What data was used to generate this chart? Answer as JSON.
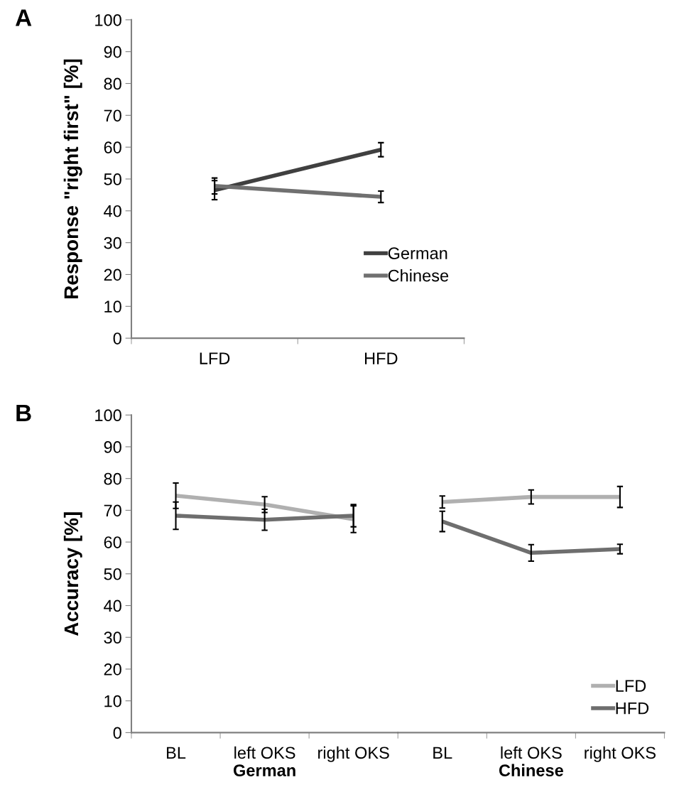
{
  "chart_data": [
    {
      "type": "line",
      "title": "A",
      "ylabel": "Response \"right first\" [%]",
      "categories": [
        "LFD",
        "HFD"
      ],
      "ylim": [
        0,
        100
      ],
      "yticks": [
        0,
        10,
        20,
        30,
        40,
        50,
        60,
        70,
        80,
        90,
        100
      ],
      "grid": false,
      "legend": "bottom right",
      "marker": "none",
      "line_style": "solid",
      "series": [
        {
          "name": "German",
          "color": "#404040",
          "values": [
            46.5,
            59.2
          ],
          "errors": [
            3,
            2.2
          ]
        },
        {
          "name": "Chinese",
          "color": "#707070",
          "values": [
            47.8,
            44.4
          ],
          "errors": [
            2.5,
            1.8
          ]
        }
      ]
    },
    {
      "type": "line",
      "title": "B",
      "ylabel": "Accuracy [%]",
      "xlabel": "German",
      "categories": [
        "BL",
        "left OKS",
        "right OKS"
      ],
      "ylim": [
        0,
        100
      ],
      "yticks": [
        0,
        10,
        20,
        30,
        40,
        50,
        60,
        70,
        80,
        90,
        100
      ],
      "grid": false,
      "legend": "bottom right",
      "marker": "none",
      "line_style": "solid",
      "series": [
        {
          "name": "LFD",
          "color": "#b0b0b0",
          "values": [
            74.6,
            71.8,
            67.2
          ],
          "errors": [
            4,
            2.5,
            4.2
          ]
        },
        {
          "name": "HFD",
          "color": "#6e6e6e",
          "values": [
            68.3,
            67,
            68.3
          ],
          "errors": [
            4.3,
            3.3,
            3.5
          ]
        }
      ]
    },
    {
      "type": "line",
      "xlabel": "Chinese",
      "categories": [
        "BL",
        "left OKS",
        "right OKS"
      ],
      "ylim": [
        0,
        100
      ],
      "yticks": [
        0,
        10,
        20,
        30,
        40,
        50,
        60,
        70,
        80,
        90,
        100
      ],
      "tick_labels": "x",
      "grid": false,
      "legend": "bottom right",
      "marker": "none",
      "line_style": "solid",
      "series": [
        {
          "name": "LFD",
          "color": "#b0b0b0",
          "values": [
            72.6,
            74.2,
            74.2
          ],
          "errors": [
            1.9,
            2.2,
            3.3
          ]
        },
        {
          "name": "HFD",
          "color": "#6e6e6e",
          "values": [
            66.5,
            56.6,
            57.8
          ],
          "errors": [
            3.2,
            2.6,
            1.5
          ]
        }
      ]
    }
  ]
}
